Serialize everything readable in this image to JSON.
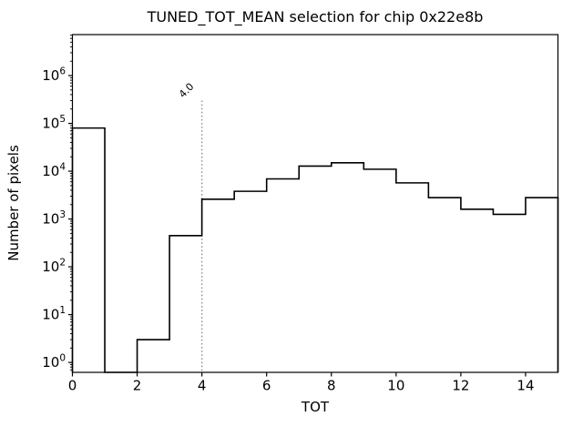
{
  "chart_data": {
    "type": "bar",
    "subtype": "step-histogram",
    "title": "TUNED_TOT_MEAN selection for chip 0x22e8b",
    "xlabel": "TOT",
    "ylabel": "Number of pixels",
    "yscale": "log",
    "grid": false,
    "legend": null,
    "xlim": [
      0,
      15
    ],
    "ylim": [
      0.62,
      7200000
    ],
    "x_ticks": [
      0,
      2,
      4,
      6,
      8,
      10,
      12,
      14
    ],
    "y_tick_exponents": [
      0,
      1,
      2,
      3,
      4,
      5,
      6
    ],
    "y_tick_base": "10",
    "bin_edges": [
      0,
      1,
      2,
      3,
      4,
      5,
      6,
      7,
      8,
      9,
      10,
      11,
      12,
      13,
      14,
      15
    ],
    "counts": [
      80000,
      0,
      3,
      450,
      2600,
      3800,
      6900,
      12800,
      15000,
      11000,
      5700,
      2800,
      1600,
      1250,
      2800
    ],
    "line_color": "#000000",
    "vline": {
      "x": 4.0,
      "label": "4.0",
      "top_value": 300000,
      "color": "#909090",
      "style": "dotted"
    }
  }
}
